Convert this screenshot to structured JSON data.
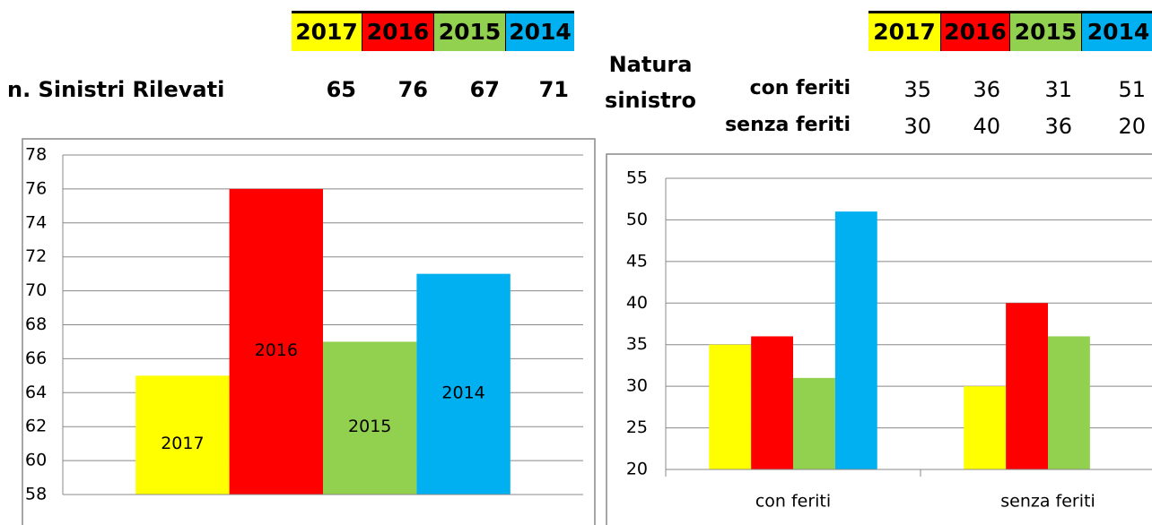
{
  "tables": [
    {
      "columns": [
        "2017",
        "2016",
        "2015",
        "2014"
      ],
      "rows": [
        {
          "label": "n. Sinistri Rilevati",
          "values": [
            65,
            76,
            67,
            71
          ]
        }
      ]
    },
    {
      "title": "Natura sinistro",
      "columns": [
        "2017",
        "2016",
        "2015",
        "2014"
      ],
      "rows": [
        {
          "label": "con feriti",
          "values": [
            35,
            36,
            31,
            51
          ]
        },
        {
          "label": "senza feriti",
          "values": [
            30,
            40,
            36,
            20
          ]
        }
      ]
    }
  ],
  "chart_data": [
    {
      "type": "bar",
      "categories": [
        null
      ],
      "series": [
        {
          "name": "2017",
          "color": "#ffff00",
          "label_color": "#000000",
          "values": [
            65
          ]
        },
        {
          "name": "2016",
          "color": "#ff0000",
          "label_color": "#ffffff",
          "values": [
            76
          ]
        },
        {
          "name": "2015",
          "color": "#92d050",
          "label_color": "#ffffff",
          "values": [
            67
          ]
        },
        {
          "name": "2014",
          "color": "#00b0f0",
          "label_color": "#000000",
          "values": [
            71
          ]
        }
      ],
      "ylim": [
        58,
        78
      ],
      "yticks": [
        58,
        60,
        62,
        64,
        66,
        68,
        70,
        72,
        74,
        76,
        78
      ],
      "grid": true,
      "bar_labels": "series_name"
    },
    {
      "type": "bar",
      "categories": [
        "con feriti",
        "senza feriti"
      ],
      "series": [
        {
          "name": "2017",
          "color": "#ffff00",
          "values": [
            35,
            30
          ]
        },
        {
          "name": "2016",
          "color": "#ff0000",
          "values": [
            36,
            40
          ]
        },
        {
          "name": "2015",
          "color": "#92d050",
          "values": [
            31,
            36
          ]
        },
        {
          "name": "2014",
          "color": "#00b0f0",
          "values": [
            51,
            20
          ]
        }
      ],
      "ylim": [
        20,
        55
      ],
      "yticks": [
        20,
        25,
        30,
        35,
        40,
        45,
        50,
        55
      ],
      "grid": true
    }
  ]
}
